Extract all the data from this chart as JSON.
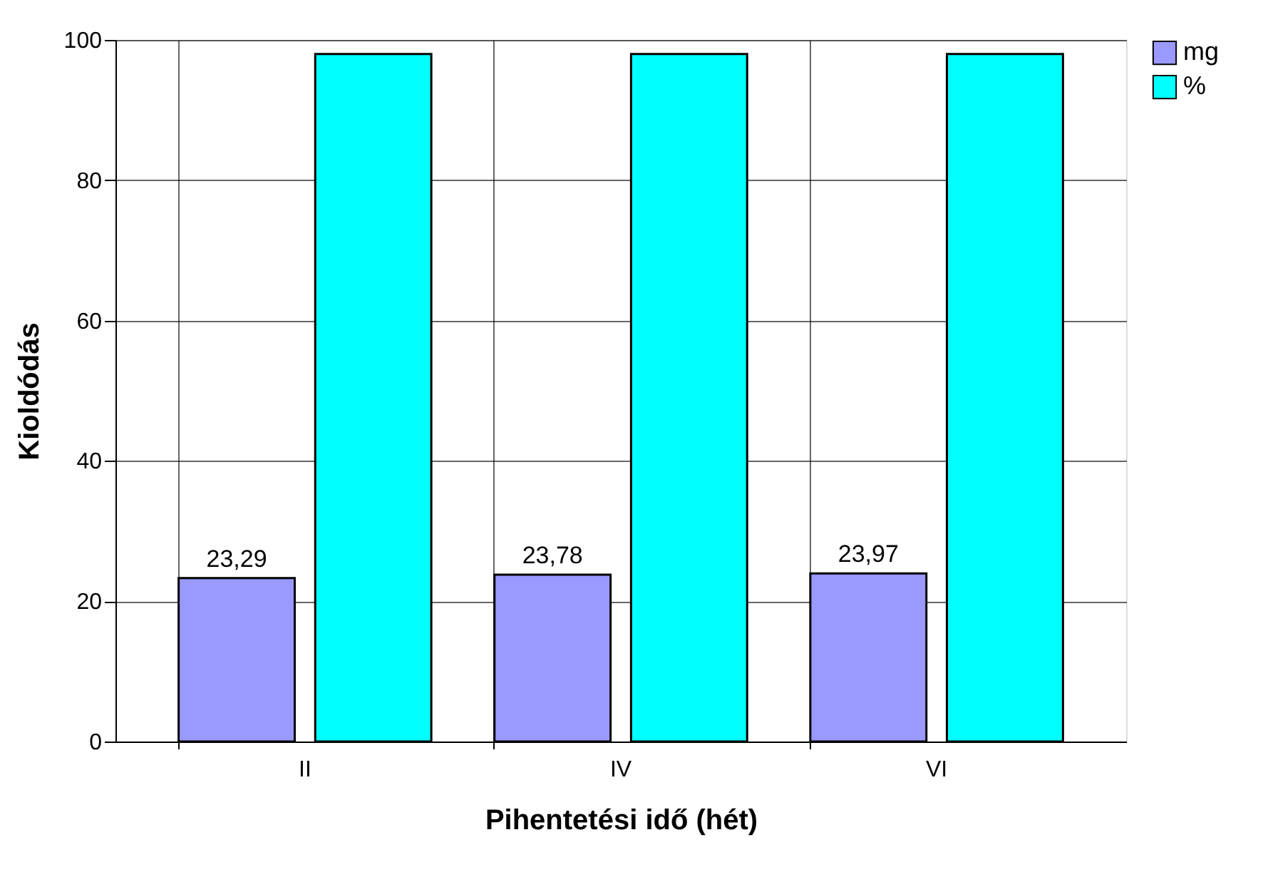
{
  "chart_data": {
    "type": "bar",
    "xlabel": "Pihentetési idő (hét)",
    "ylabel": "Kioldódás",
    "categories": [
      "II",
      "IV",
      "VI"
    ],
    "series": [
      {
        "name": "mg",
        "color": "#9999ff",
        "values": [
          23.29,
          23.78,
          23.97
        ],
        "value_labels": [
          "23,29",
          "23,78",
          "23,97"
        ]
      },
      {
        "name": "%",
        "color": "#00ffff",
        "values": [
          98,
          98,
          98
        ]
      }
    ],
    "ylim": [
      0,
      100
    ],
    "yticks": [
      0,
      20,
      40,
      60,
      80,
      100
    ],
    "grid": true,
    "legend": "right"
  }
}
